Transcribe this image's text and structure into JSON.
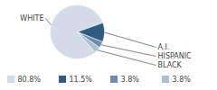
{
  "chart_data": {
    "type": "pie",
    "categories": [
      "WHITE",
      "A.I.",
      "HISPANIC",
      "BLACK"
    ],
    "values": [
      80.8,
      11.5,
      3.8,
      3.8
    ],
    "value_labels": [
      "80.8%",
      "11.5%",
      "3.8%",
      "3.8%"
    ],
    "colors": [
      "#d3dbe6",
      "#2f5b80",
      "#6b8cab",
      "#aabfd2"
    ],
    "legend": "bottom"
  }
}
